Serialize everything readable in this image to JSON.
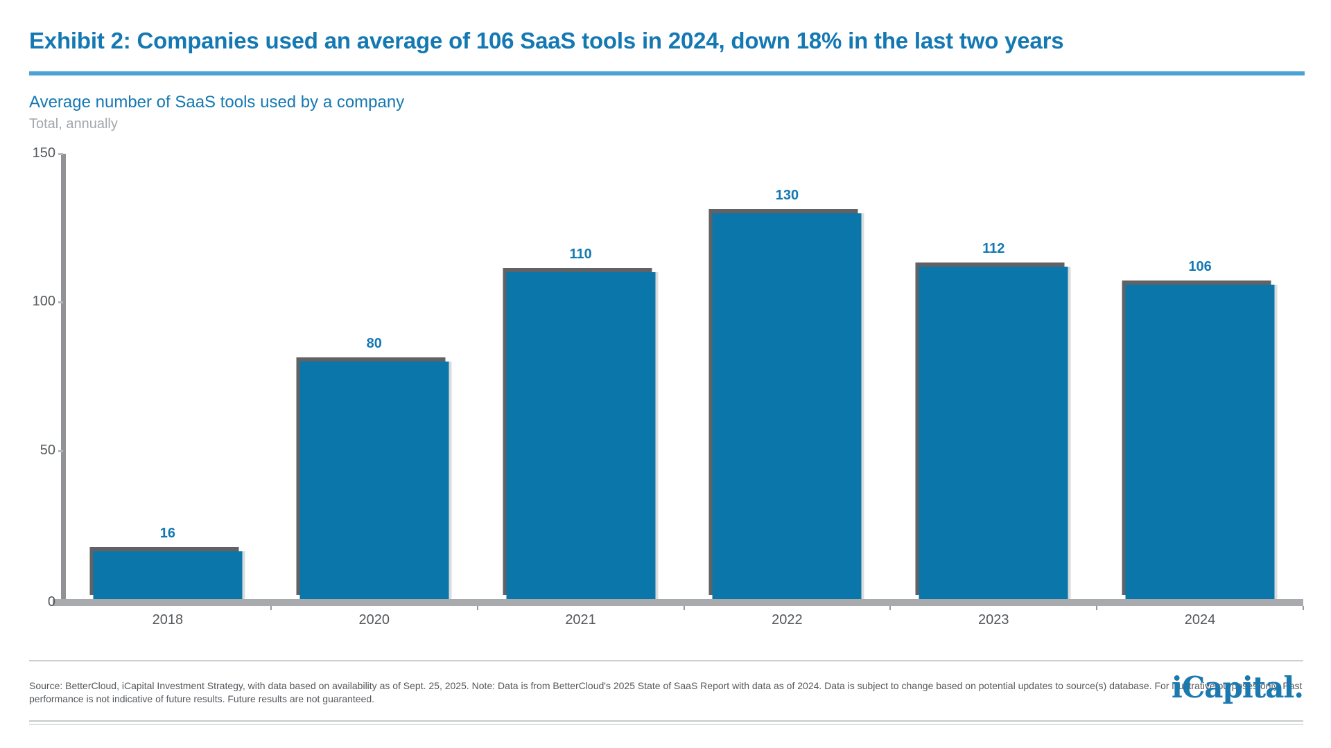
{
  "header": {
    "title": "Exhibit 2: Companies used an average of 106 SaaS tools in 2024, down 18% in the last two years",
    "subtitle": "Average number of SaaS tools used by a company",
    "caption": "Total, annually"
  },
  "chart_data": {
    "type": "bar",
    "categories": [
      "2018",
      "2020",
      "2021",
      "2022",
      "2023",
      "2024"
    ],
    "values": [
      16,
      80,
      110,
      130,
      112,
      106
    ],
    "title": "Average number of SaaS tools used by a company",
    "subtitle": "Total, annually",
    "xlabel": "",
    "ylabel": "",
    "ylim": [
      0,
      150
    ],
    "yticks": [
      0,
      50,
      100,
      150
    ],
    "grid": false,
    "legend": false,
    "data_labels": true,
    "bar_color": "#0b76a9"
  },
  "footer": {
    "source_lines": [
      "Source: BetterCloud, iCapital Investment Strategy, with data based on availability as of Sept. 25, 2025. Note: Data is from BetterCloud's 2025 State of SaaS Report with data as of 2024. Data is subject to change based on potential updates to source(s) database. For illustrative purposes only. Past",
      "performance is not indicative of future results. Future results are not guaranteed."
    ],
    "logo_text": "iCapital."
  },
  "colors": {
    "accent_blue": "#1478b2",
    "rule_blue": "#4ba3d4",
    "bar_blue": "#0b76a9",
    "bar_shadow_gray": "#606266",
    "axis_gray": "#a8aaad",
    "tick_text_gray": "#54575b",
    "caption_gray": "#a2a6aa"
  }
}
